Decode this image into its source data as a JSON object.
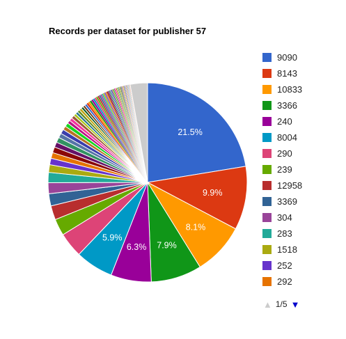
{
  "chart_data": {
    "type": "pie",
    "title": "Records per dataset for publisher 57",
    "legend_position": "right",
    "slices": [
      {
        "label": "9090",
        "value": 21.5,
        "color": "#3366cc",
        "value_label": "21.5%"
      },
      {
        "label": "8143",
        "value": 9.9,
        "color": "#dc3912",
        "value_label": "9.9%"
      },
      {
        "label": "10833",
        "value": 8.1,
        "color": "#ff9900",
        "value_label": "8.1%"
      },
      {
        "label": "3366",
        "value": 7.9,
        "color": "#109618",
        "value_label": "7.9%"
      },
      {
        "label": "240",
        "value": 6.3,
        "color": "#990099",
        "value_label": "6.3%"
      },
      {
        "label": "8004",
        "value": 5.9,
        "color": "#0099c6",
        "value_label": "5.9%"
      },
      {
        "label": "290",
        "value": 3.9,
        "color": "#dd4477",
        "value_label": ""
      },
      {
        "label": "239",
        "value": 2.6,
        "color": "#66aa00",
        "value_label": ""
      },
      {
        "label": "12958",
        "value": 2.2,
        "color": "#b82e2e",
        "value_label": ""
      },
      {
        "label": "3369",
        "value": 1.9,
        "color": "#316395",
        "value_label": ""
      },
      {
        "label": "304",
        "value": 1.7,
        "color": "#994499",
        "value_label": ""
      },
      {
        "label": "283",
        "value": 1.6,
        "color": "#22aa99",
        "value_label": ""
      },
      {
        "label": "1518",
        "value": 1.2,
        "color": "#aaaa11",
        "value_label": ""
      },
      {
        "label": "252",
        "value": 1.0,
        "color": "#6633cc",
        "value_label": ""
      },
      {
        "label": "292",
        "value": 0.9,
        "color": "#e67300",
        "value_label": ""
      },
      {
        "label": "",
        "value": 0.9,
        "color": "#8b0707",
        "value_label": ""
      },
      {
        "label": "",
        "value": 0.8,
        "color": "#651067",
        "value_label": ""
      },
      {
        "label": "",
        "value": 0.8,
        "color": "#329262",
        "value_label": ""
      },
      {
        "label": "",
        "value": 0.7,
        "color": "#5574a6",
        "value_label": ""
      },
      {
        "label": "",
        "value": 0.7,
        "color": "#3b3eac",
        "value_label": ""
      },
      {
        "label": "",
        "value": 0.6,
        "color": "#b77322",
        "value_label": ""
      },
      {
        "label": "",
        "value": 0.6,
        "color": "#16d620",
        "value_label": ""
      },
      {
        "label": "",
        "value": 0.5,
        "color": "#b91383",
        "value_label": ""
      },
      {
        "label": "",
        "value": 0.5,
        "color": "#f4359e",
        "value_label": ""
      },
      {
        "label": "",
        "value": 0.5,
        "color": "#9c5935",
        "value_label": ""
      },
      {
        "label": "",
        "value": 0.4,
        "color": "#a9c413",
        "value_label": ""
      },
      {
        "label": "",
        "value": 0.4,
        "color": "#2a778d",
        "value_label": ""
      },
      {
        "label": "",
        "value": 0.4,
        "color": "#668d1c",
        "value_label": ""
      },
      {
        "label": "",
        "value": 0.4,
        "color": "#bea413",
        "value_label": ""
      },
      {
        "label": "",
        "value": 0.35,
        "color": "#0c5922",
        "value_label": ""
      },
      {
        "label": "",
        "value": 0.35,
        "color": "#743411",
        "value_label": ""
      },
      {
        "label": "",
        "value": 0.35,
        "color": "#3366cc",
        "value_label": ""
      },
      {
        "label": "",
        "value": 0.3,
        "color": "#dc3912",
        "value_label": ""
      },
      {
        "label": "",
        "value": 0.3,
        "color": "#ff9900",
        "value_label": ""
      },
      {
        "label": "",
        "value": 0.3,
        "color": "#109618",
        "value_label": ""
      },
      {
        "label": "",
        "value": 0.3,
        "color": "#990099",
        "value_label": ""
      },
      {
        "label": "",
        "value": 0.28,
        "color": "#0099c6",
        "value_label": ""
      },
      {
        "label": "",
        "value": 0.28,
        "color": "#dd4477",
        "value_label": ""
      },
      {
        "label": "",
        "value": 0.26,
        "color": "#66aa00",
        "value_label": ""
      },
      {
        "label": "",
        "value": 0.26,
        "color": "#b82e2e",
        "value_label": ""
      },
      {
        "label": "",
        "value": 0.24,
        "color": "#316395",
        "value_label": ""
      },
      {
        "label": "",
        "value": 0.24,
        "color": "#994499",
        "value_label": ""
      },
      {
        "label": "",
        "value": 0.22,
        "color": "#22aa99",
        "value_label": ""
      },
      {
        "label": "",
        "value": 0.22,
        "color": "#aaaa11",
        "value_label": ""
      },
      {
        "label": "",
        "value": 0.2,
        "color": "#6633cc",
        "value_label": ""
      },
      {
        "label": "",
        "value": 0.2,
        "color": "#e67300",
        "value_label": ""
      },
      {
        "label": "",
        "value": 0.2,
        "color": "#8b0707",
        "value_label": ""
      },
      {
        "label": "",
        "value": 0.18,
        "color": "#651067",
        "value_label": ""
      },
      {
        "label": "",
        "value": 0.18,
        "color": "#329262",
        "value_label": ""
      },
      {
        "label": "",
        "value": 0.17,
        "color": "#5574a6",
        "value_label": ""
      },
      {
        "label": "",
        "value": 0.17,
        "color": "#3b3eac",
        "value_label": ""
      },
      {
        "label": "",
        "value": 0.16,
        "color": "#b77322",
        "value_label": ""
      },
      {
        "label": "",
        "value": 0.16,
        "color": "#16d620",
        "value_label": ""
      },
      {
        "label": "",
        "value": 0.15,
        "color": "#b91383",
        "value_label": ""
      },
      {
        "label": "",
        "value": 0.15,
        "color": "#f4359e",
        "value_label": ""
      },
      {
        "label": "",
        "value": 0.14,
        "color": "#9c5935",
        "value_label": ""
      },
      {
        "label": "",
        "value": 0.14,
        "color": "#a9c413",
        "value_label": ""
      },
      {
        "label": "",
        "value": 0.13,
        "color": "#2a778d",
        "value_label": ""
      },
      {
        "label": "",
        "value": 0.13,
        "color": "#668d1c",
        "value_label": ""
      },
      {
        "label": "",
        "value": 0.12,
        "color": "#bea413",
        "value_label": ""
      },
      {
        "label": "",
        "value": 0.12,
        "color": "#0c5922",
        "value_label": ""
      },
      {
        "label": "",
        "value": 0.11,
        "color": "#743411",
        "value_label": ""
      },
      {
        "label": "",
        "value": 0.11,
        "color": "#3366cc",
        "value_label": ""
      },
      {
        "label": "",
        "value": 0.1,
        "color": "#dc3912",
        "value_label": ""
      },
      {
        "label": "",
        "value": 0.1,
        "color": "#ff9900",
        "value_label": ""
      },
      {
        "label": "",
        "value": 0.1,
        "color": "#109618",
        "value_label": ""
      },
      {
        "label": "",
        "value": 0.1,
        "color": "#990099",
        "value_label": ""
      },
      {
        "label": "",
        "value": 0.09,
        "color": "#0099c6",
        "value_label": ""
      },
      {
        "label": "",
        "value": 0.09,
        "color": "#dd4477",
        "value_label": ""
      },
      {
        "label": "",
        "value": 0.09,
        "color": "#66aa00",
        "value_label": ""
      },
      {
        "label": "",
        "value": 0.08,
        "color": "#b82e2e",
        "value_label": ""
      },
      {
        "label": "",
        "value": 0.08,
        "color": "#316395",
        "value_label": ""
      },
      {
        "label": "",
        "value": 0.08,
        "color": "#994499",
        "value_label": ""
      },
      {
        "label": "",
        "value": 0.08,
        "color": "#22aa99",
        "value_label": ""
      },
      {
        "label": "",
        "value": 0.07,
        "color": "#aaaa11",
        "value_label": ""
      },
      {
        "label": "",
        "value": 0.07,
        "color": "#6633cc",
        "value_label": ""
      },
      {
        "label": "",
        "value": 0.07,
        "color": "#e67300",
        "value_label": ""
      },
      {
        "label": "",
        "value": 0.07,
        "color": "#8b0707",
        "value_label": ""
      },
      {
        "label": "",
        "value": 2.7,
        "color": "#cccccc",
        "value_label": ""
      }
    ],
    "legend": {
      "visible_count": 15,
      "pager": {
        "text": "1/5",
        "prev_enabled": false,
        "next_enabled": true
      }
    },
    "colors": {
      "pager_disabled": "#cccccc",
      "pager_enabled": "#0000cc"
    }
  }
}
